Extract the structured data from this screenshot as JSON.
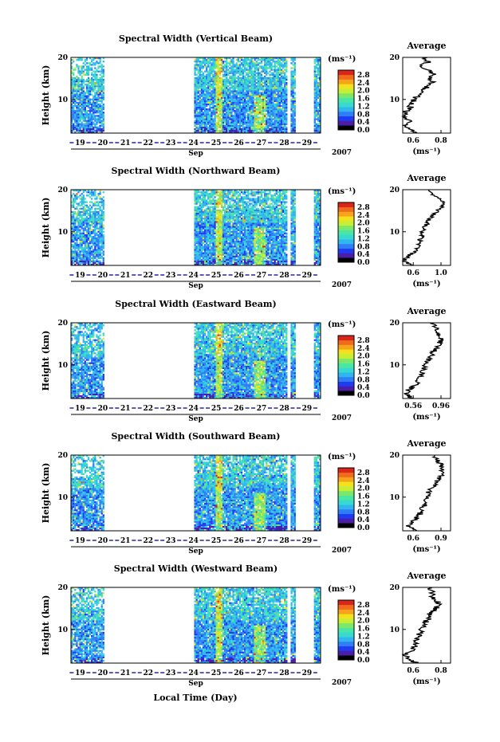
{
  "colorbar": {
    "unit": "(ms⁻¹)",
    "ticks": [
      "2.8",
      "2.4",
      "2.0",
      "1.6",
      "1.2",
      "0.8",
      "0.4",
      "0.0"
    ],
    "colors": [
      "#000000",
      "#4a1ea8",
      "#1f3cf2",
      "#2f7df8",
      "#31b5ef",
      "#38d9d1",
      "#49e6a5",
      "#7be86a",
      "#c7ee35",
      "#f2e21d",
      "#f8a41a",
      "#f26a1c",
      "#d8261b"
    ]
  },
  "common": {
    "ylabel": "Height (km)",
    "xlabel": "Local Time (Day)",
    "month": "Sep",
    "year": "2007",
    "avg_title": "Average",
    "avg_unit": "(ms⁻¹)",
    "day_labels": [
      "19",
      "20",
      "21",
      "22",
      "23",
      "24",
      "25",
      "26",
      "27",
      "28",
      "29"
    ],
    "height_ticks": [
      "20",
      "10"
    ]
  },
  "chart_data": [
    {
      "type": "heatmap",
      "title": "Spectral Width (Vertical Beam)",
      "x_range_days": [
        18.6,
        29.6
      ],
      "y_range_km": [
        2,
        20
      ],
      "data_gaps_days": [
        [
          20.1,
          24.0
        ],
        [
          28.1,
          28.3
        ],
        [
          28.5,
          29.3
        ]
      ],
      "avg_profile": {
        "xticks": [
          "0.6",
          "0.8"
        ],
        "xlim": [
          0.5,
          0.9
        ],
        "height_km": [
          2,
          3,
          4,
          5,
          6,
          7,
          8,
          9,
          10,
          11,
          12,
          13,
          14,
          15,
          16,
          17,
          18,
          19,
          20
        ],
        "width_ms": [
          0.62,
          0.55,
          0.52,
          0.56,
          0.52,
          0.53,
          0.56,
          0.57,
          0.6,
          0.62,
          0.66,
          0.7,
          0.75,
          0.72,
          0.78,
          0.7,
          0.65,
          0.72,
          0.66
        ]
      }
    },
    {
      "type": "heatmap",
      "title": "Spectral Width (Northward Beam)",
      "x_range_days": [
        18.6,
        29.6
      ],
      "y_range_km": [
        2,
        20
      ],
      "data_gaps_days": [
        [
          20.1,
          24.0
        ],
        [
          28.1,
          28.3
        ],
        [
          28.5,
          29.3
        ]
      ],
      "avg_profile": {
        "xticks": [
          "0.6",
          "1.0"
        ],
        "xlim": [
          0.5,
          1.05
        ],
        "height_km": [
          2,
          3,
          4,
          5,
          6,
          7,
          8,
          9,
          10,
          11,
          12,
          13,
          14,
          15,
          16,
          17,
          18,
          19,
          20
        ],
        "width_ms": [
          0.6,
          0.52,
          0.55,
          0.62,
          0.66,
          0.68,
          0.7,
          0.72,
          0.72,
          0.75,
          0.78,
          0.8,
          0.86,
          0.9,
          0.95,
          0.98,
          0.9,
          0.85,
          0.8
        ]
      }
    },
    {
      "type": "heatmap",
      "title": "Spectral Width (Eastward Beam)",
      "x_range_days": [
        18.6,
        29.6
      ],
      "y_range_km": [
        2,
        20
      ],
      "data_gaps_days": [
        [
          20.1,
          24.0
        ],
        [
          28.1,
          28.3
        ],
        [
          28.5,
          29.3
        ]
      ],
      "avg_profile": {
        "xticks": [
          "0.56",
          "0.96"
        ],
        "xlim": [
          0.5,
          1.0
        ],
        "height_km": [
          2,
          3,
          4,
          5,
          6,
          7,
          8,
          9,
          10,
          11,
          12,
          13,
          14,
          15,
          16,
          17,
          18,
          19,
          20
        ],
        "width_ms": [
          0.6,
          0.54,
          0.56,
          0.62,
          0.66,
          0.68,
          0.7,
          0.72,
          0.74,
          0.76,
          0.8,
          0.82,
          0.85,
          0.88,
          0.9,
          0.88,
          0.86,
          0.84,
          0.82
        ]
      }
    },
    {
      "type": "heatmap",
      "title": "Spectral Width (Southward Beam)",
      "x_range_days": [
        18.6,
        29.6
      ],
      "y_range_km": [
        2,
        20
      ],
      "data_gaps_days": [
        [
          20.1,
          24.0
        ],
        [
          28.1,
          28.3
        ],
        [
          28.5,
          29.3
        ]
      ],
      "avg_profile": {
        "xticks": [
          "0.6",
          "0.9"
        ],
        "xlim": [
          0.5,
          0.95
        ],
        "height_km": [
          2,
          3,
          4,
          5,
          6,
          7,
          8,
          9,
          10,
          11,
          12,
          13,
          14,
          15,
          16,
          17,
          18,
          19,
          20
        ],
        "width_ms": [
          0.62,
          0.55,
          0.58,
          0.63,
          0.66,
          0.68,
          0.7,
          0.72,
          0.73,
          0.74,
          0.77,
          0.8,
          0.82,
          0.86,
          0.88,
          0.86,
          0.85,
          0.82,
          0.8
        ]
      }
    },
    {
      "type": "heatmap",
      "title": "Spectral Width (Westward Beam)",
      "x_range_days": [
        18.6,
        29.6
      ],
      "y_range_km": [
        2,
        20
      ],
      "data_gaps_days": [
        [
          20.1,
          24.0
        ],
        [
          28.1,
          28.3
        ],
        [
          28.5,
          29.3
        ]
      ],
      "avg_profile": {
        "xticks": [
          "0.6",
          "0.8"
        ],
        "xlim": [
          0.5,
          0.9
        ],
        "height_km": [
          2,
          3,
          4,
          5,
          6,
          7,
          8,
          9,
          10,
          11,
          12,
          13,
          14,
          15,
          16,
          17,
          18,
          19,
          20
        ],
        "width_ms": [
          0.62,
          0.55,
          0.52,
          0.58,
          0.6,
          0.62,
          0.63,
          0.64,
          0.66,
          0.68,
          0.7,
          0.72,
          0.74,
          0.78,
          0.8,
          0.78,
          0.74,
          0.76,
          0.72
        ]
      }
    }
  ]
}
